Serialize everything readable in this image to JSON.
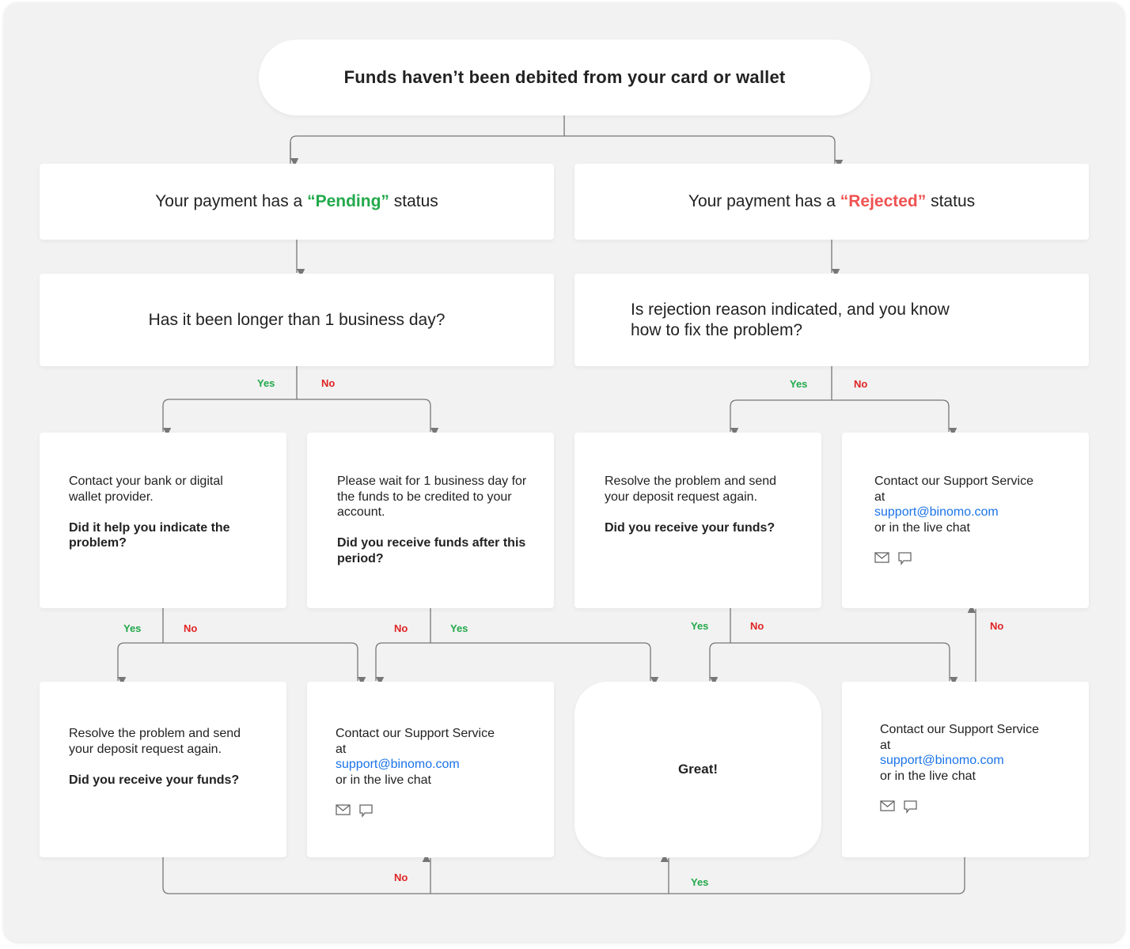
{
  "title": "Funds haven’t been debited from your card or wallet",
  "pending": {
    "pre": "Your payment has a ",
    "status": "“Pending”",
    "post": " status"
  },
  "rejected": {
    "pre": "Your payment has a ",
    "status": "“Rejected”",
    "post": " status"
  },
  "q_pending": "Has it been longer than 1 business day?",
  "q_rejected": {
    "line1": "Is rejection reason indicated, and you know",
    "line2": "how to fix the problem?"
  },
  "cards": {
    "bank": {
      "text": "Contact your bank or digital wallet provider.",
      "question": "Did it help you indicate the problem?"
    },
    "wait": {
      "text": "Please wait for 1 business day for the funds to be credited to your account.",
      "question": "Did you receive funds after this period?"
    },
    "resolve1": {
      "text": "Resolve the problem and send your deposit request again.",
      "question": "Did you receive your funds?"
    },
    "support": {
      "line1": "Contact our Support Service at",
      "email": "support@binomo.com",
      "line2": "or in the live chat"
    },
    "resolve2": {
      "text": "Resolve the problem and send your deposit request again.",
      "question": "Did you receive your funds?"
    },
    "great": "Great!"
  },
  "labels": {
    "yes": "Yes",
    "no": "No"
  },
  "colors": {
    "pending": "#22a94b",
    "rejected": "#f05252",
    "link": "#1a73e8",
    "yes": "#22a94b",
    "no": "#e02424"
  },
  "icons": [
    "mail-icon",
    "chat-icon"
  ]
}
